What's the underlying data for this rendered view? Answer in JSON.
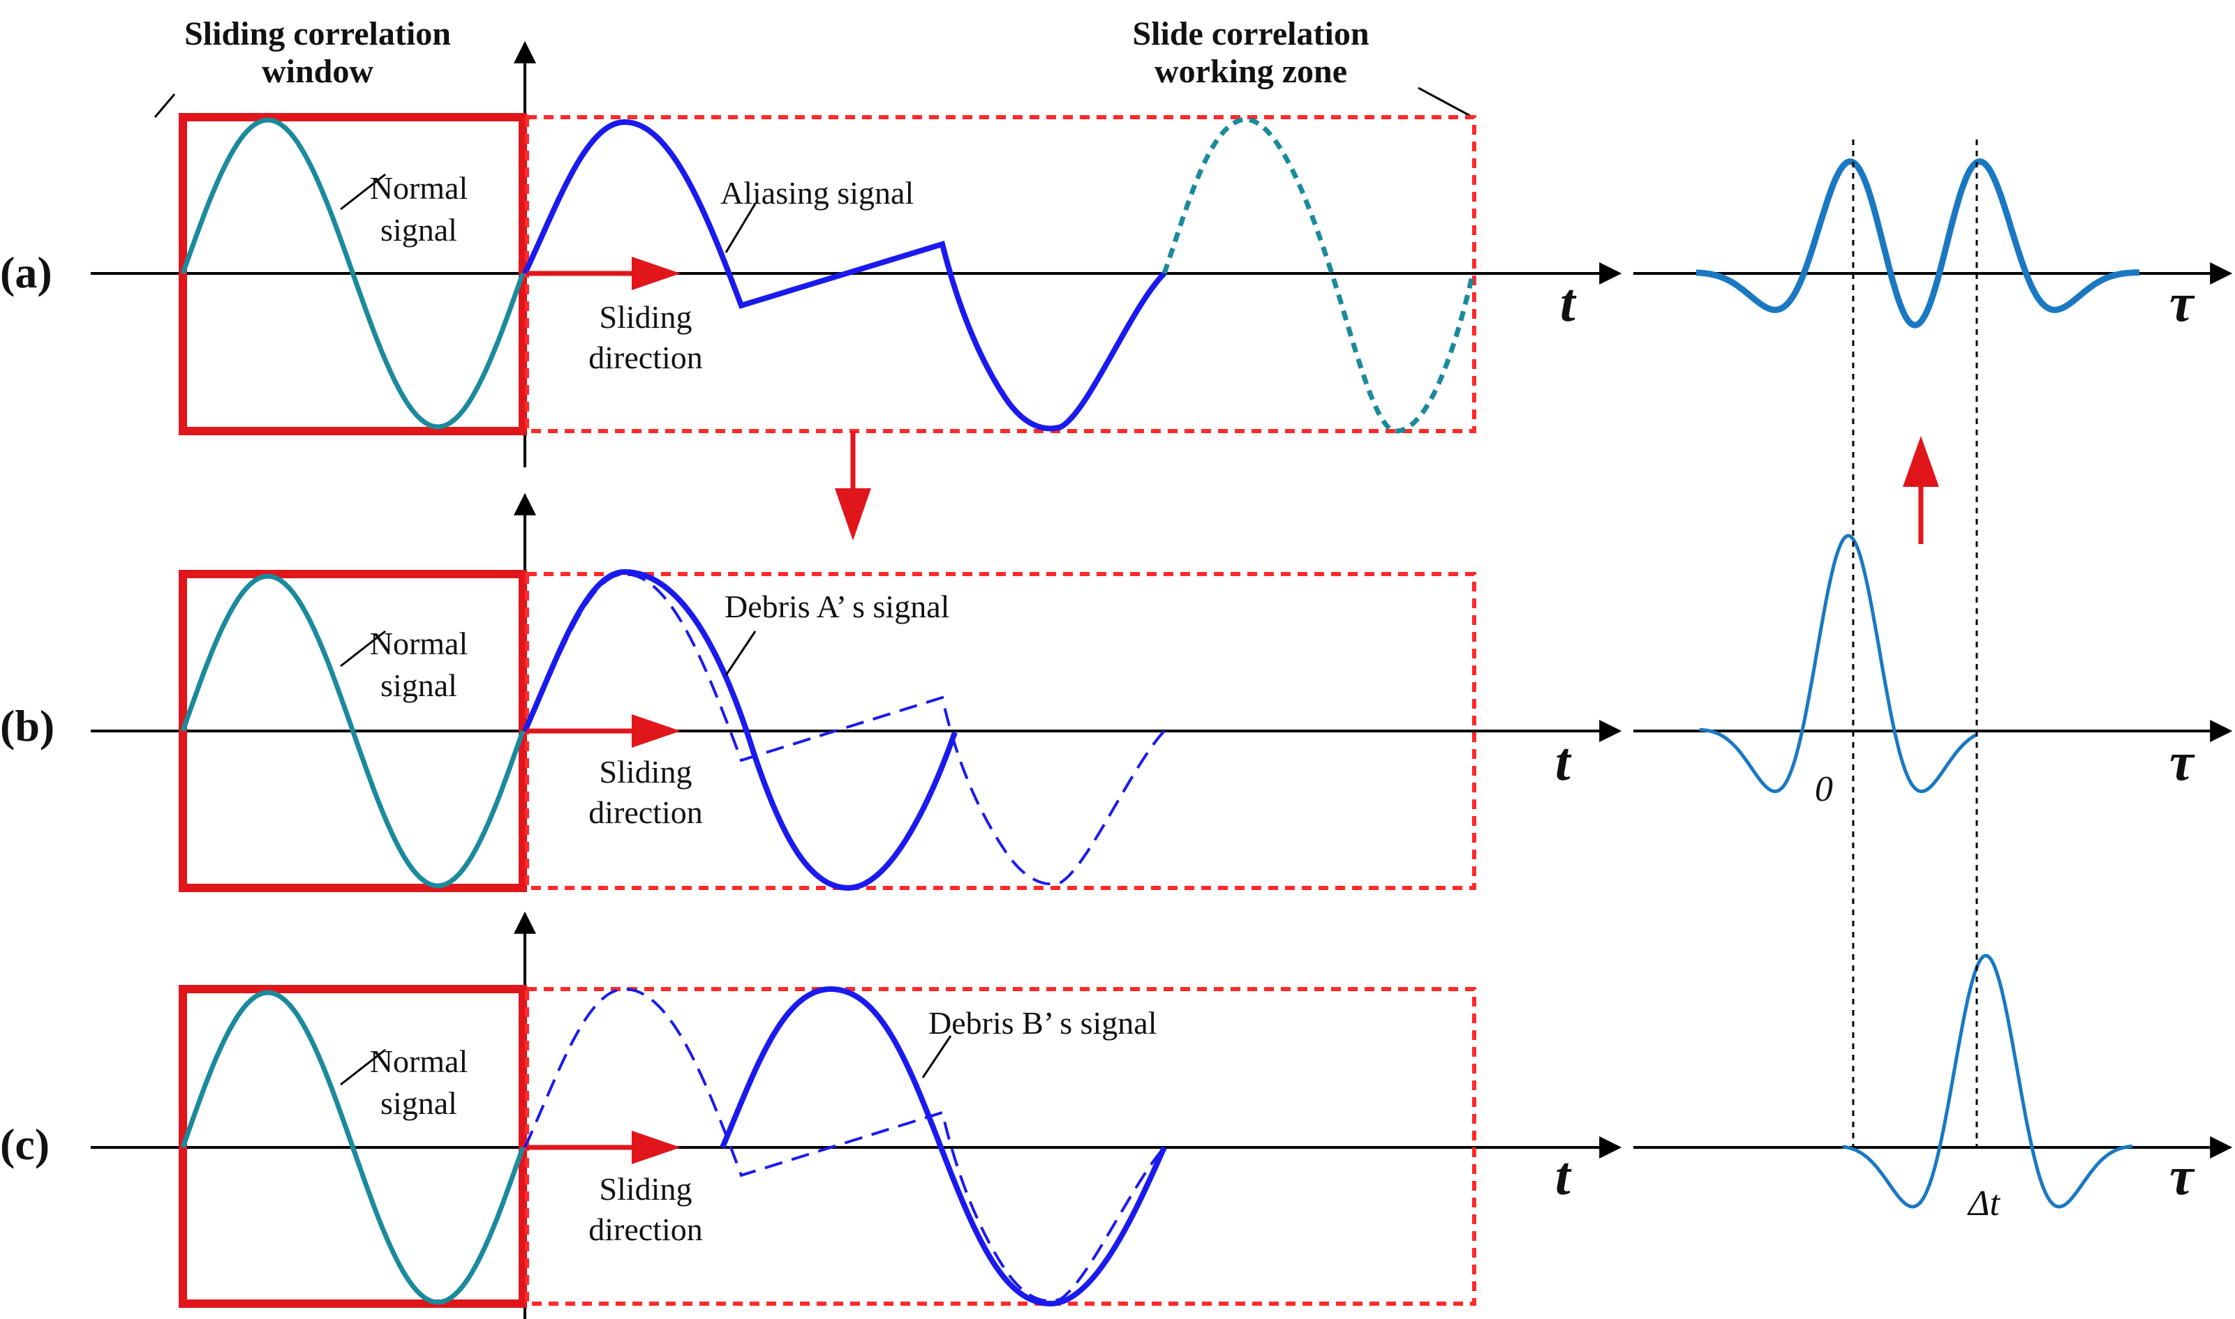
{
  "titles": {
    "sliding_window": [
      "Sliding correlation",
      "window"
    ],
    "working_zone": [
      "Slide correlation",
      "working zone"
    ]
  },
  "panels": [
    {
      "label": "(a)",
      "signal_label": "Aliasing signal",
      "normal_label": [
        "Normal",
        "signal"
      ],
      "direction_label": [
        "Sliding",
        "direction"
      ]
    },
    {
      "label": "(b)",
      "signal_label": "Debris A’ s signal",
      "normal_label": [
        "Normal",
        "signal"
      ],
      "direction_label": [
        "Sliding",
        "direction"
      ]
    },
    {
      "label": "(c)",
      "signal_label": "Debris B’ s signal",
      "normal_label": [
        "Normal",
        "signal"
      ],
      "direction_label": [
        "Sliding",
        "direction"
      ]
    }
  ],
  "axes": {
    "time": "t",
    "lag": "τ"
  },
  "markers": {
    "zero": "0",
    "delta_t": "Δt"
  },
  "colors": {
    "window": "#e0161b",
    "zone_dash": "#ff2a2a",
    "normal_signal": "#1a8a9c",
    "debris_signal": "#1a1aee",
    "correlation": "#1a78c2",
    "axis": "#000000"
  },
  "icons": [
    "sliding-arrow-icon",
    "down-arrow-icon",
    "up-arrow-icon"
  ]
}
